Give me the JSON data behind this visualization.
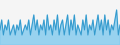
{
  "values": [
    4,
    6,
    3,
    5,
    4,
    6,
    3,
    4,
    5,
    3,
    5,
    4,
    6,
    3,
    4,
    5,
    4,
    6,
    3,
    5,
    7,
    4,
    6,
    3,
    5,
    4,
    6,
    3,
    7,
    4,
    5,
    3,
    6,
    4,
    7,
    3,
    5,
    6,
    3,
    5,
    7,
    3,
    6,
    4,
    7,
    3,
    5,
    4,
    3,
    6,
    4,
    7,
    3,
    5,
    4,
    6,
    3,
    5,
    7,
    4,
    6,
    3,
    7,
    4,
    6,
    3,
    5,
    4,
    6,
    8,
    3,
    5
  ],
  "line_color": "#3399cc",
  "fill_color": "#88ccee",
  "background_color": "#f5f5f5",
  "ylim_min": 1,
  "ylim_max": 10
}
